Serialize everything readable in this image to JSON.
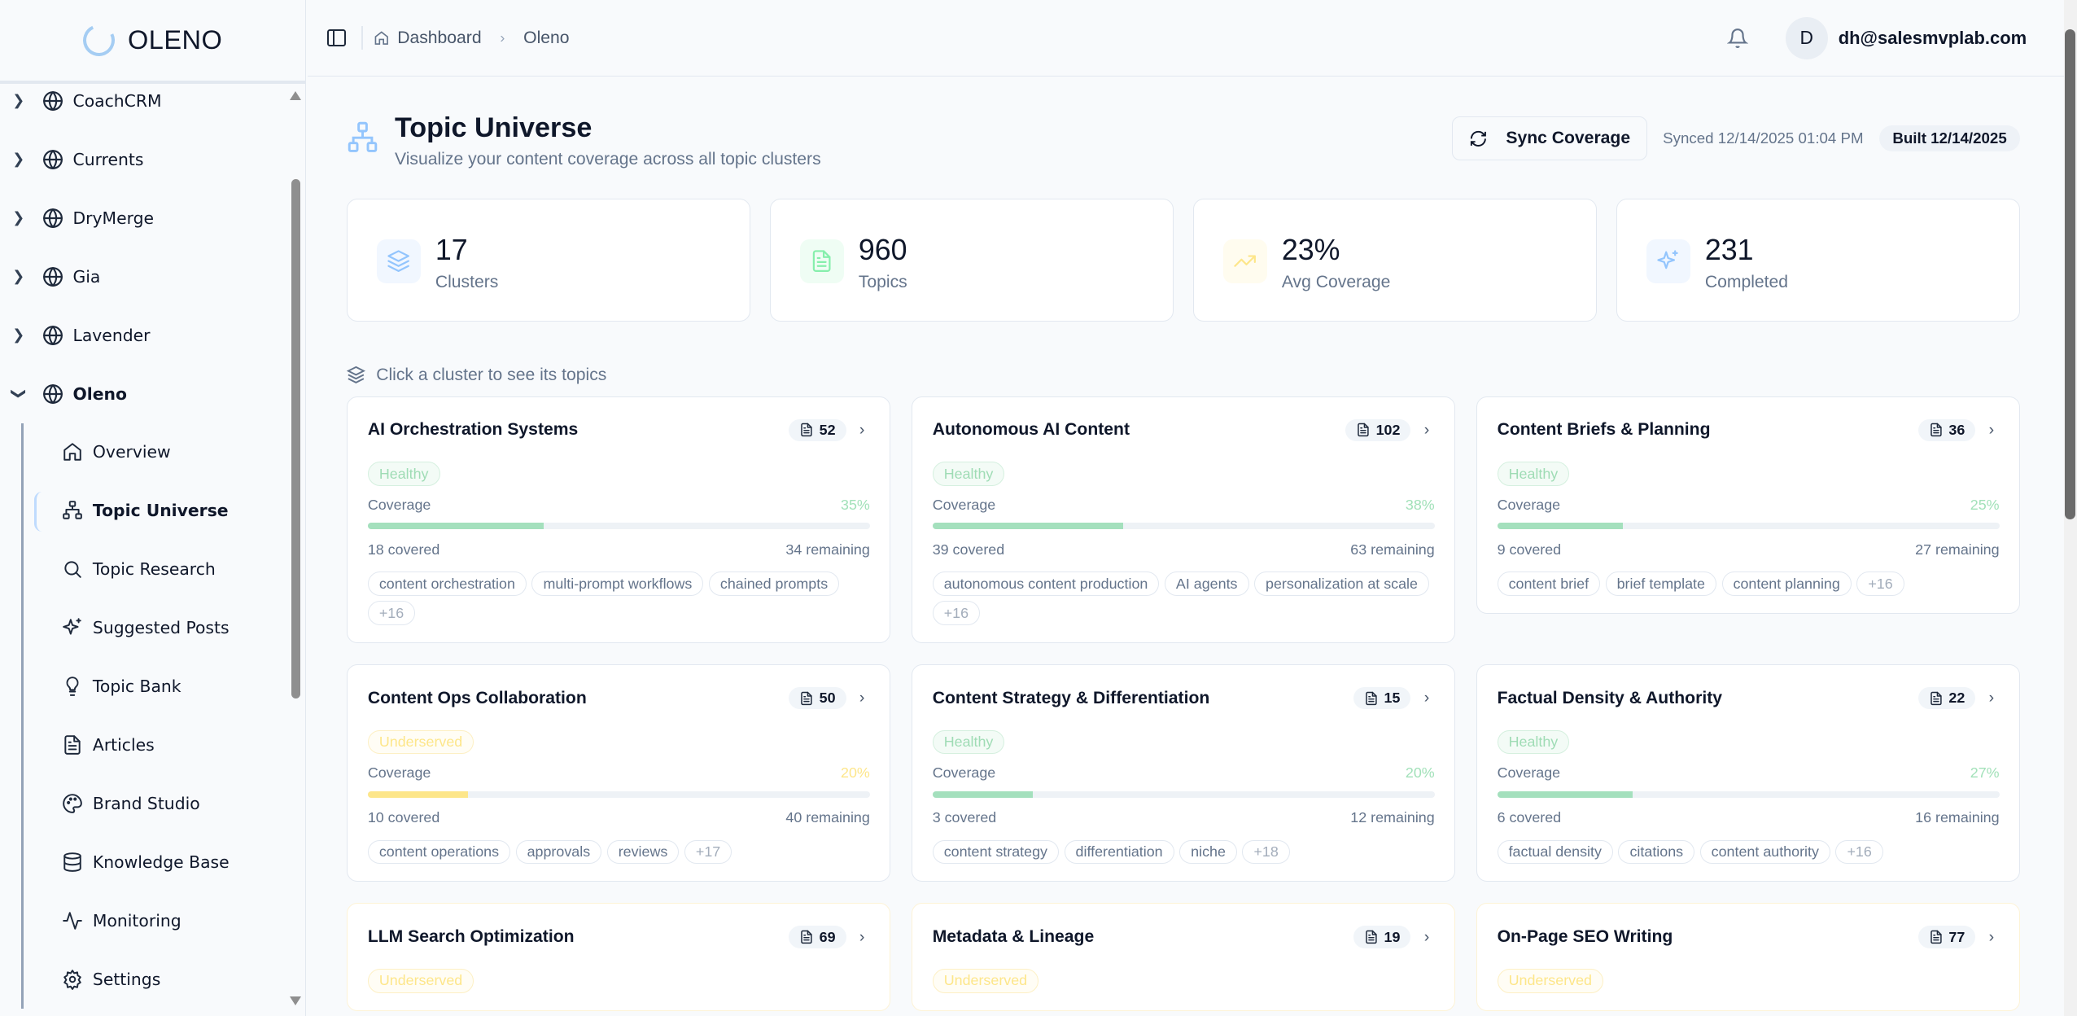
{
  "app": {
    "logo_text": "OLENO"
  },
  "sidebar": {
    "projects": [
      {
        "label": "CoachCRM"
      },
      {
        "label": "Currents"
      },
      {
        "label": "DryMerge"
      },
      {
        "label": "Gia"
      },
      {
        "label": "Lavender"
      }
    ],
    "expanded_project": {
      "label": "Oleno"
    },
    "items": [
      {
        "label": "Overview",
        "icon": "home-icon"
      },
      {
        "label": "Topic Universe",
        "icon": "sitemap-icon",
        "active": true
      },
      {
        "label": "Topic Research",
        "icon": "search-icon"
      },
      {
        "label": "Suggested Posts",
        "icon": "sparkles-icon"
      },
      {
        "label": "Topic Bank",
        "icon": "lightbulb-icon"
      },
      {
        "label": "Articles",
        "icon": "file-text-icon"
      },
      {
        "label": "Brand Studio",
        "icon": "palette-icon"
      },
      {
        "label": "Knowledge Base",
        "icon": "database-icon"
      },
      {
        "label": "Monitoring",
        "icon": "activity-icon"
      },
      {
        "label": "Settings",
        "icon": "gear-icon"
      }
    ]
  },
  "header": {
    "breadcrumb": [
      "Dashboard",
      "Oleno"
    ],
    "avatar_initial": "D",
    "user_email": "dh@salesmvplab.com"
  },
  "page": {
    "title": "Topic Universe",
    "subtitle": "Visualize your content coverage across all topic clusters",
    "sync_button": "Sync Coverage",
    "synced": "Synced 12/14/2025 01:04 PM",
    "built": "Built 12/14/2025",
    "hint": "Click a cluster to see its topics"
  },
  "stats": [
    {
      "value": "17",
      "label": "Clusters",
      "icon": "layers-icon",
      "color": "#93c5fd"
    },
    {
      "value": "960",
      "label": "Topics",
      "icon": "file-text-icon",
      "color": "#86efac"
    },
    {
      "value": "23%",
      "label": "Avg Coverage",
      "icon": "trending-up-icon",
      "color": "#fde68a"
    },
    {
      "value": "231",
      "label": "Completed",
      "icon": "sparkles-icon",
      "color": "#93c5fd"
    }
  ],
  "colors": {
    "healthy": "#a4e0bd",
    "underserved": "#fde68a",
    "accent": "#93c5fd"
  },
  "clusters": [
    {
      "title": "AI Orchestration Systems",
      "count": "52",
      "status": "Healthy",
      "coverage_label": "Coverage",
      "coverage": "35%",
      "covered": "18 covered",
      "remaining": "34 remaining",
      "tags": [
        "content orchestration",
        "multi-prompt workflows",
        "chained prompts"
      ],
      "more": "+16"
    },
    {
      "title": "Autonomous AI Content",
      "count": "102",
      "status": "Healthy",
      "coverage_label": "Coverage",
      "coverage": "38%",
      "covered": "39 covered",
      "remaining": "63 remaining",
      "tags": [
        "autonomous content production",
        "AI agents",
        "personalization at scale"
      ],
      "more": "+16"
    },
    {
      "title": "Content Briefs & Planning",
      "count": "36",
      "status": "Healthy",
      "coverage_label": "Coverage",
      "coverage": "25%",
      "covered": "9 covered",
      "remaining": "27 remaining",
      "tags": [
        "content brief",
        "brief template",
        "content planning"
      ],
      "more": "+16"
    },
    {
      "title": "Content Ops Collaboration",
      "count": "50",
      "status": "Underserved",
      "coverage_label": "Coverage",
      "coverage": "20%",
      "covered": "10 covered",
      "remaining": "40 remaining",
      "tags": [
        "content operations",
        "approvals",
        "reviews"
      ],
      "more": "+17"
    },
    {
      "title": "Content Strategy & Differentiation",
      "count": "15",
      "status": "Healthy",
      "coverage_label": "Coverage",
      "coverage": "20%",
      "covered": "3 covered",
      "remaining": "12 remaining",
      "tags": [
        "content strategy",
        "differentiation",
        "niche"
      ],
      "more": "+18"
    },
    {
      "title": "Factual Density & Authority",
      "count": "22",
      "status": "Healthy",
      "coverage_label": "Coverage",
      "coverage": "27%",
      "covered": "6 covered",
      "remaining": "16 remaining",
      "tags": [
        "factual density",
        "citations",
        "content authority"
      ],
      "more": "+16"
    },
    {
      "title": "LLM Search Optimization",
      "count": "69",
      "status": "Underserved"
    },
    {
      "title": "Metadata & Lineage",
      "count": "19",
      "status": "Underserved"
    },
    {
      "title": "On-Page SEO Writing",
      "count": "77",
      "status": "Underserved"
    }
  ]
}
